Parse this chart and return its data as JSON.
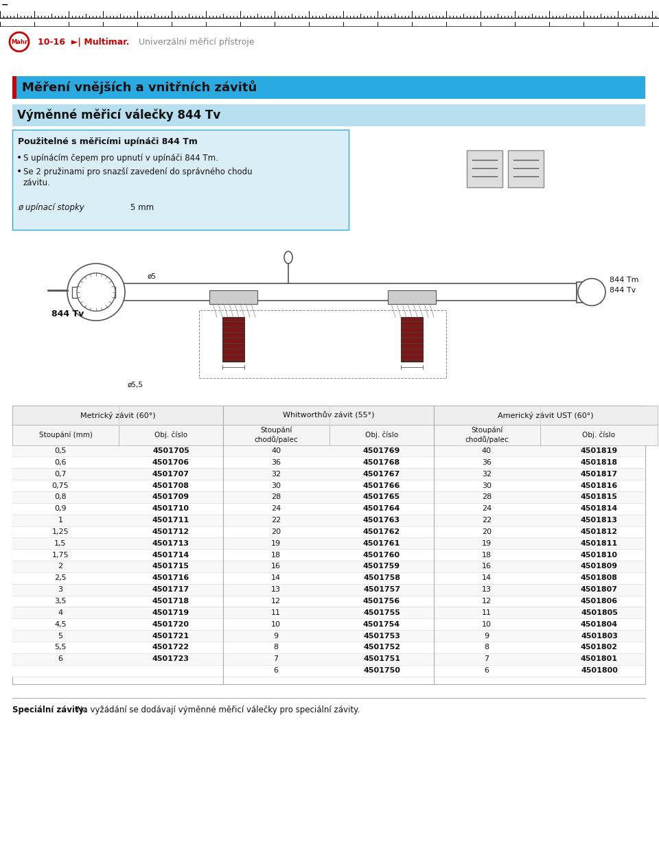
{
  "page_bg": "#ffffff",
  "ruler_color": "#000000",
  "mahr_circle_color": "#cc0000",
  "section_header_bg": "#29abe2",
  "section_header_text": "Měření vnějších a vnitřních závitů",
  "product_header_bg": "#b8dff0",
  "product_header_text": "Výměnné měřicí válečky 844 Tv",
  "info_box_bg": "#daeef7",
  "info_box_border": "#29abe2",
  "info_title": "Použitelné s měřicími upínáči 844 Tm",
  "bullet1": "S upínácím čepem pro upnutí v upínáči 844 Tm.",
  "bullet2a": "Se 2 pružinami pro snazší zavedení do správného chodu",
  "bullet2b": "závitu.",
  "diameter_label": "ø upínací stopky",
  "diameter_value": "5 mm",
  "col1_header1": "Metrický závit (60°)",
  "col2_header1": "Whitworthův závit (55°)",
  "col3_header1": "Americký závit UST (60°)",
  "table_header_bg": "#e8e8e8",
  "col1_stoupani": [
    "0,5",
    "0,6",
    "0,7",
    "0,75",
    "0,8",
    "0,9",
    "1",
    "1,25",
    "1,5",
    "1,75",
    "2",
    "2,5",
    "3",
    "3,5",
    "4",
    "4,5",
    "5",
    "5,5",
    "6"
  ],
  "col1_obj": [
    "4501705",
    "4501706",
    "4501707",
    "4501708",
    "4501709",
    "4501710",
    "4501711",
    "4501712",
    "4501713",
    "4501714",
    "4501715",
    "4501716",
    "4501717",
    "4501718",
    "4501719",
    "4501720",
    "4501721",
    "4501722",
    "4501723"
  ],
  "col2_stoupani": [
    "40",
    "36",
    "32",
    "30",
    "28",
    "24",
    "22",
    "20",
    "19",
    "18",
    "16",
    "14",
    "13",
    "12",
    "11",
    "10",
    "9",
    "8",
    "7",
    "6"
  ],
  "col2_obj": [
    "4501769",
    "4501768",
    "4501767",
    "4501766",
    "4501765",
    "4501764",
    "4501763",
    "4501762",
    "4501761",
    "4501760",
    "4501759",
    "4501758",
    "4501757",
    "4501756",
    "4501755",
    "4501754",
    "4501753",
    "4501752",
    "4501751",
    "4501750"
  ],
  "col3_stoupani": [
    "40",
    "36",
    "32",
    "30",
    "28",
    "24",
    "22",
    "20",
    "19",
    "18",
    "16",
    "14",
    "13",
    "12",
    "11",
    "10",
    "9",
    "8",
    "7",
    "6"
  ],
  "col3_obj": [
    "4501819",
    "4501818",
    "4501817",
    "4501816",
    "4501815",
    "4501814",
    "4501813",
    "4501812",
    "4501811",
    "4501810",
    "4501809",
    "4501808",
    "4501807",
    "4501806",
    "4501805",
    "4501804",
    "4501803",
    "4501802",
    "4501801",
    "4501800"
  ],
  "footer_bold": "Speciální závity:",
  "footer_rest": " Na vyžádání se dodávají výměnné měřicí válečky pro speciální závity.",
  "red_bar_color": "#cc0000",
  "divider_color": "#cccccc"
}
